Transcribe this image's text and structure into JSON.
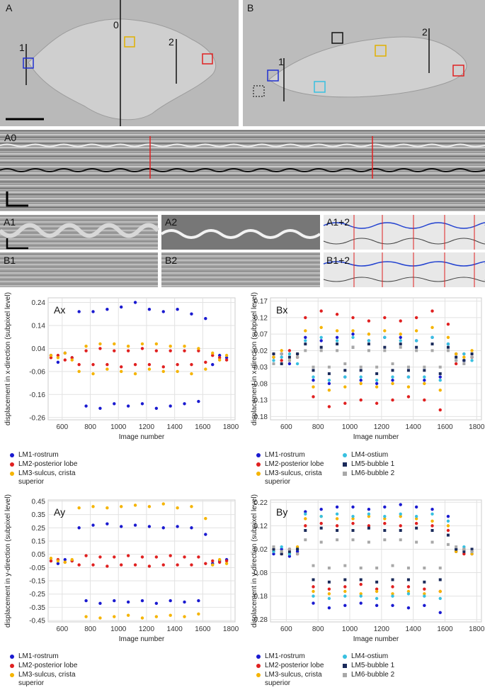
{
  "panels": {
    "A": {
      "label": "A",
      "markers": [
        "0",
        "1",
        "2"
      ]
    },
    "B": {
      "label": "B",
      "markers": [
        "1",
        "2"
      ]
    },
    "A0": "A0",
    "A1": "A1",
    "A2": "A2",
    "A12": "A1+2",
    "B1": "B1",
    "B2": "B2",
    "B12": "B1+2"
  },
  "chart_data": [
    {
      "type": "scatter",
      "title": "Ax",
      "x_label": "Image number",
      "y_label": "displacement in x-direction (subpixel level)",
      "xlim": [
        500,
        1830
      ],
      "xticks": [
        600,
        800,
        1000,
        1200,
        1400,
        1600,
        1800
      ],
      "ylim": [
        -0.27,
        0.26
      ],
      "yticks": [
        0.24,
        0.14,
        0.04,
        -0.06,
        -0.16,
        -0.26
      ],
      "grid": true,
      "x": [
        520,
        570,
        620,
        670,
        720,
        770,
        820,
        870,
        920,
        970,
        1020,
        1070,
        1120,
        1170,
        1220,
        1270,
        1320,
        1370,
        1420,
        1470,
        1520,
        1570,
        1620,
        1670,
        1720,
        1770
      ],
      "series": [
        {
          "name": "LM1-rostrum",
          "color": "#1a1ad0",
          "marker": "circle",
          "values": [
            0.01,
            -0.02,
            0.02,
            0.0,
            0.2,
            -0.21,
            0.2,
            -0.22,
            0.21,
            -0.2,
            0.22,
            -0.21,
            0.24,
            -0.2,
            0.21,
            -0.22,
            0.2,
            -0.21,
            0.21,
            -0.2,
            0.19,
            -0.19,
            0.17,
            -0.03,
            0.01,
            0.0
          ]
        },
        {
          "name": "LM2-posterior lobe",
          "color": "#e02020",
          "marker": "circle",
          "values": [
            0.0,
            0.01,
            -0.01,
            0.0,
            -0.03,
            0.03,
            -0.03,
            0.04,
            -0.03,
            0.03,
            -0.04,
            0.03,
            -0.03,
            0.04,
            -0.03,
            0.03,
            -0.04,
            0.03,
            -0.03,
            0.03,
            -0.03,
            0.03,
            -0.02,
            0.01,
            0.0,
            -0.01
          ]
        },
        {
          "name": "LM3-sulcus, crista superior",
          "color": "#f5b400",
          "marker": "circle",
          "values": [
            0.01,
            0.0,
            0.02,
            -0.01,
            -0.06,
            0.05,
            -0.07,
            0.06,
            -0.05,
            0.06,
            -0.06,
            0.05,
            -0.07,
            0.06,
            -0.05,
            0.06,
            -0.06,
            0.05,
            -0.06,
            0.05,
            -0.07,
            0.04,
            -0.05,
            0.02,
            -0.01,
            0.01
          ]
        }
      ]
    },
    {
      "type": "scatter",
      "title": "Bx",
      "x_label": "Image number",
      "y_label": "displacement in x-direction (subpixel level)",
      "xlim": [
        500,
        1830
      ],
      "xticks": [
        600,
        800,
        1000,
        1200,
        1400,
        1600,
        1800
      ],
      "ylim": [
        -0.19,
        0.18
      ],
      "yticks": [
        0.17,
        0.12,
        0.07,
        0.02,
        -0.03,
        -0.08,
        -0.13,
        -0.18
      ],
      "grid": true,
      "x": [
        520,
        570,
        620,
        670,
        720,
        770,
        820,
        870,
        920,
        970,
        1020,
        1070,
        1120,
        1170,
        1220,
        1270,
        1320,
        1370,
        1420,
        1470,
        1520,
        1570,
        1620,
        1670,
        1720,
        1770
      ],
      "series": [
        {
          "name": "LM1-rostrum",
          "color": "#1a1ad0",
          "marker": "circle",
          "values": [
            0.0,
            0.01,
            -0.02,
            0.01,
            0.06,
            -0.07,
            0.05,
            -0.08,
            0.06,
            -0.06,
            0.07,
            -0.07,
            0.05,
            -0.08,
            0.06,
            -0.07,
            0.06,
            -0.06,
            0.05,
            -0.07,
            0.06,
            -0.06,
            0.04,
            0.01,
            -0.01,
            0.0
          ]
        },
        {
          "name": "LM2-posterior lobe",
          "color": "#e02020",
          "marker": "circle",
          "values": [
            0.01,
            -0.01,
            0.02,
            0.0,
            0.12,
            -0.12,
            0.14,
            -0.15,
            0.13,
            -0.14,
            0.12,
            -0.13,
            0.11,
            -0.14,
            0.12,
            -0.13,
            0.11,
            -0.12,
            0.12,
            -0.13,
            0.14,
            -0.16,
            0.1,
            -0.02,
            0.01,
            0.0
          ]
        },
        {
          "name": "LM3-sulcus, crista superior",
          "color": "#f5b400",
          "marker": "circle",
          "values": [
            0.0,
            0.02,
            -0.01,
            0.01,
            0.08,
            -0.09,
            0.09,
            -0.1,
            0.08,
            -0.09,
            0.08,
            -0.08,
            0.07,
            -0.09,
            0.08,
            -0.08,
            0.07,
            -0.09,
            0.08,
            -0.08,
            0.09,
            -0.1,
            0.06,
            0.01,
            0.0,
            0.02
          ]
        },
        {
          "name": "LM4-ostium",
          "color": "#38c0e0",
          "marker": "circle",
          "values": [
            -0.01,
            0.0,
            0.01,
            -0.02,
            0.05,
            -0.06,
            0.06,
            -0.07,
            0.05,
            -0.06,
            0.06,
            -0.06,
            0.05,
            -0.07,
            0.06,
            -0.06,
            0.05,
            -0.06,
            0.05,
            -0.06,
            0.06,
            -0.07,
            0.04,
            -0.01,
            0.01,
            -0.01
          ]
        },
        {
          "name": "LM5-bubble 1",
          "color": "#1a2a5a",
          "marker": "square",
          "values": [
            0.01,
            -0.02,
            0.0,
            0.01,
            0.04,
            -0.04,
            0.03,
            -0.05,
            0.04,
            -0.04,
            0.03,
            -0.04,
            0.04,
            -0.05,
            0.03,
            -0.04,
            0.04,
            -0.04,
            0.03,
            -0.04,
            0.04,
            -0.05,
            0.03,
            0.0,
            -0.01,
            0.01
          ]
        },
        {
          "name": "LM6-bubble 2",
          "color": "#a8a8a8",
          "marker": "square",
          "values": [
            -0.02,
            0.01,
            -0.01,
            0.0,
            0.02,
            -0.03,
            0.02,
            -0.03,
            0.02,
            -0.02,
            0.03,
            -0.03,
            0.02,
            -0.03,
            0.02,
            -0.02,
            0.03,
            -0.03,
            0.02,
            -0.03,
            0.02,
            -0.03,
            0.02,
            -0.01,
            -0.02,
            0.0
          ]
        }
      ]
    },
    {
      "type": "scatter",
      "title": "Ay",
      "x_label": "Image number",
      "y_label": "displacement in y-direction (subpixel level)",
      "xlim": [
        500,
        1830
      ],
      "xticks": [
        600,
        800,
        1000,
        1200,
        1400,
        1600,
        1800
      ],
      "ylim": [
        -0.46,
        0.46
      ],
      "yticks": [
        0.45,
        0.35,
        0.25,
        0.15,
        0.05,
        -0.05,
        -0.15,
        -0.25,
        -0.35,
        -0.45
      ],
      "grid": true,
      "x": [
        520,
        570,
        620,
        670,
        720,
        770,
        820,
        870,
        920,
        970,
        1020,
        1070,
        1120,
        1170,
        1220,
        1270,
        1320,
        1370,
        1420,
        1470,
        1520,
        1570,
        1620,
        1670,
        1720,
        1770
      ],
      "series": [
        {
          "name": "LM1-rostrum",
          "color": "#1a1ad0",
          "marker": "circle",
          "values": [
            0.0,
            -0.02,
            0.01,
            0.0,
            0.25,
            -0.3,
            0.27,
            -0.32,
            0.28,
            -0.3,
            0.26,
            -0.31,
            0.27,
            -0.3,
            0.26,
            -0.32,
            0.25,
            -0.3,
            0.26,
            -0.31,
            0.25,
            -0.3,
            0.2,
            -0.02,
            0.0,
            0.01
          ]
        },
        {
          "name": "LM2-posterior lobe",
          "color": "#e02020",
          "marker": "circle",
          "values": [
            0.0,
            0.01,
            -0.01,
            0.0,
            -0.03,
            0.04,
            -0.03,
            0.03,
            -0.04,
            0.03,
            -0.03,
            0.04,
            -0.03,
            0.03,
            -0.04,
            0.03,
            -0.03,
            0.04,
            -0.03,
            0.03,
            -0.03,
            0.03,
            -0.02,
            0.0,
            -0.01,
            0.0
          ]
        },
        {
          "name": "LM3-sulcus, crista superior",
          "color": "#f5b400",
          "marker": "circle",
          "values": [
            0.02,
            0.0,
            -0.01,
            0.01,
            0.4,
            -0.42,
            0.41,
            -0.43,
            0.4,
            -0.42,
            0.41,
            -0.41,
            0.42,
            -0.43,
            0.41,
            -0.42,
            0.43,
            -0.41,
            0.4,
            -0.42,
            0.41,
            -0.4,
            0.32,
            -0.03,
            0.01,
            -0.02
          ]
        }
      ]
    },
    {
      "type": "scatter",
      "title": "By",
      "x_label": "Image number",
      "y_label": "displacement in y-direction (subpixel level)",
      "xlim": [
        500,
        1830
      ],
      "xticks": [
        600,
        800,
        1000,
        1200,
        1400,
        1600,
        1800
      ],
      "ylim": [
        -0.29,
        0.23
      ],
      "yticks": [
        0.22,
        0.12,
        0.02,
        -0.08,
        -0.18,
        -0.28
      ],
      "grid": true,
      "x": [
        520,
        570,
        620,
        670,
        720,
        770,
        820,
        870,
        920,
        970,
        1020,
        1070,
        1120,
        1170,
        1220,
        1270,
        1320,
        1370,
        1420,
        1470,
        1520,
        1570,
        1620,
        1670,
        1720,
        1770
      ],
      "series": [
        {
          "name": "LM1-rostrum",
          "color": "#1a1ad0",
          "marker": "circle",
          "values": [
            0.0,
            0.02,
            -0.01,
            0.01,
            0.18,
            -0.21,
            0.19,
            -0.23,
            0.2,
            -0.22,
            0.2,
            -0.21,
            0.19,
            -0.22,
            0.2,
            -0.22,
            0.21,
            -0.23,
            0.2,
            -0.22,
            0.19,
            -0.25,
            0.16,
            0.01,
            0.02,
            0.0
          ]
        },
        {
          "name": "LM2-posterior lobe",
          "color": "#e02020",
          "marker": "circle",
          "values": [
            0.01,
            0.0,
            0.02,
            0.0,
            0.12,
            -0.14,
            0.13,
            -0.15,
            0.12,
            -0.14,
            0.13,
            -0.13,
            0.12,
            -0.15,
            0.13,
            -0.14,
            0.12,
            -0.14,
            0.13,
            -0.15,
            0.12,
            -0.16,
            0.1,
            0.02,
            0.0,
            0.01
          ]
        },
        {
          "name": "LM3-sulcus, crista superior",
          "color": "#f5b400",
          "marker": "circle",
          "values": [
            0.02,
            0.01,
            0.0,
            0.03,
            0.15,
            -0.16,
            0.16,
            -0.17,
            0.15,
            -0.16,
            0.15,
            -0.17,
            0.16,
            -0.16,
            0.15,
            -0.17,
            0.16,
            -0.16,
            0.15,
            -0.17,
            0.14,
            -0.16,
            0.12,
            0.01,
            0.02,
            0.0
          ]
        },
        {
          "name": "LM4-ostium",
          "color": "#38c0e0",
          "marker": "circle",
          "values": [
            0.01,
            0.03,
            0.0,
            0.02,
            0.17,
            -0.18,
            0.16,
            -0.19,
            0.17,
            -0.18,
            0.16,
            -0.18,
            0.17,
            -0.19,
            0.16,
            -0.18,
            0.17,
            -0.17,
            0.16,
            -0.18,
            0.17,
            -0.19,
            0.14,
            0.02,
            0.03,
            0.01
          ]
        },
        {
          "name": "LM5-bubble 1",
          "color": "#1a2a5a",
          "marker": "square",
          "values": [
            0.02,
            0.0,
            0.01,
            0.02,
            0.1,
            -0.11,
            0.11,
            -0.12,
            0.1,
            -0.11,
            0.1,
            -0.11,
            0.11,
            -0.12,
            0.1,
            -0.11,
            0.1,
            -0.11,
            0.11,
            -0.12,
            0.1,
            -0.11,
            0.08,
            0.02,
            0.01,
            0.02
          ]
        },
        {
          "name": "LM6-bubble 2",
          "color": "#a8a8a8",
          "marker": "square",
          "values": [
            0.03,
            0.01,
            0.02,
            0.0,
            0.06,
            -0.05,
            0.05,
            -0.06,
            0.06,
            -0.05,
            0.06,
            -0.06,
            0.05,
            -0.06,
            0.06,
            -0.05,
            0.06,
            -0.06,
            0.05,
            -0.06,
            0.05,
            -0.06,
            0.04,
            0.03,
            0.02,
            0.01
          ]
        }
      ]
    }
  ]
}
